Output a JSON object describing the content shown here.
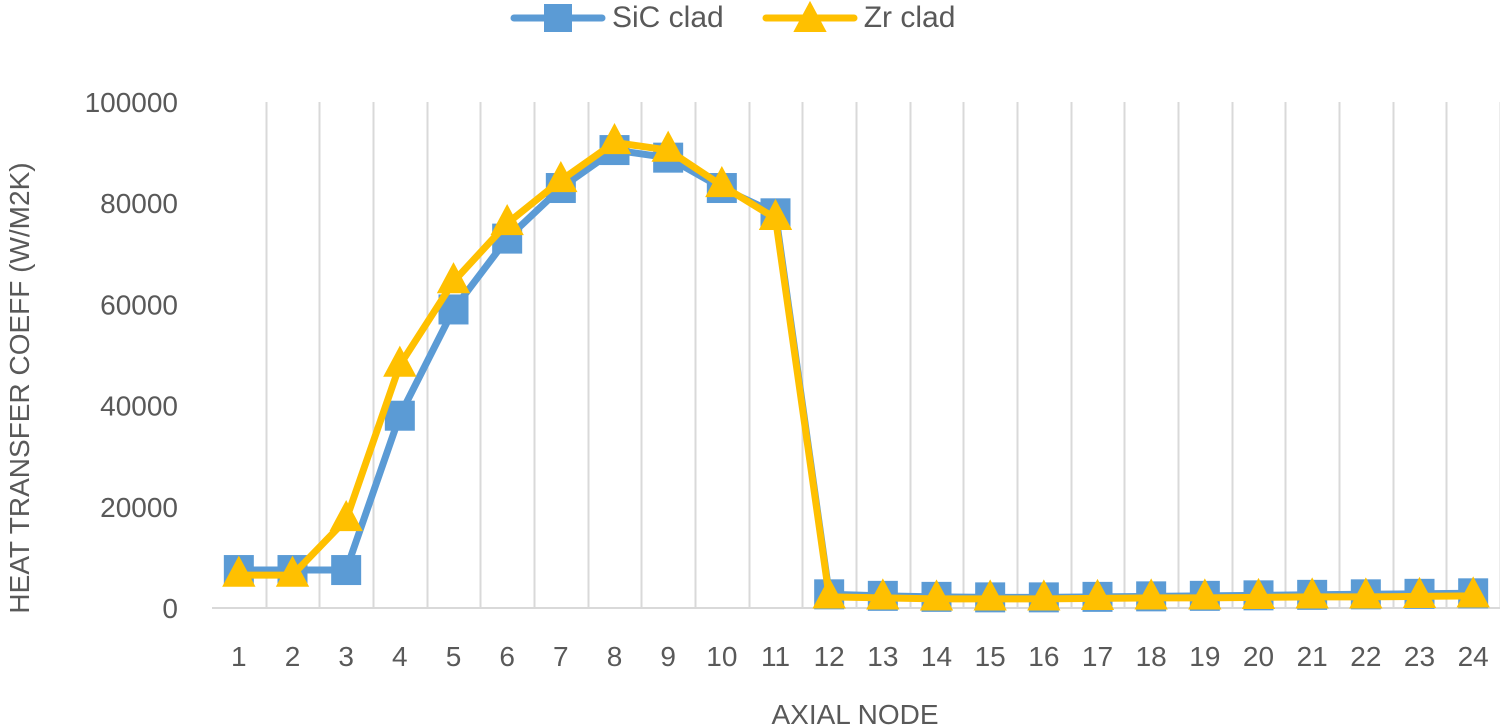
{
  "chart_data": {
    "type": "line",
    "title": "",
    "xlabel": "AXIAL NODE",
    "ylabel": "HEAT TRANSFER COEFF (W/M2K)",
    "categories": [
      "1",
      "2",
      "3",
      "4",
      "5",
      "6",
      "7",
      "8",
      "9",
      "10",
      "11",
      "12",
      "13",
      "14",
      "15",
      "16",
      "17",
      "18",
      "19",
      "20",
      "21",
      "22",
      "23",
      "24"
    ],
    "ylim": [
      0,
      100000
    ],
    "yticks": [
      "0",
      "20000",
      "40000",
      "60000",
      "80000",
      "100000"
    ],
    "grid": "vertical",
    "legend_position": "top-center",
    "series": [
      {
        "name": "SiC clad",
        "color": "#5B9BD5",
        "marker": "square",
        "values": [
          7500,
          7500,
          7500,
          38000,
          59000,
          73000,
          83000,
          90500,
          89000,
          83000,
          78000,
          2700,
          2400,
          2200,
          2100,
          2100,
          2200,
          2300,
          2400,
          2500,
          2600,
          2700,
          2800,
          2900
        ]
      },
      {
        "name": "Zr clad",
        "color": "#FFC000",
        "marker": "triangle",
        "values": [
          6500,
          6500,
          17500,
          48000,
          64500,
          76000,
          84500,
          92000,
          90500,
          83500,
          77000,
          2200,
          2000,
          1800,
          1800,
          1800,
          1900,
          2000,
          2000,
          2100,
          2200,
          2200,
          2300,
          2400
        ]
      }
    ]
  }
}
